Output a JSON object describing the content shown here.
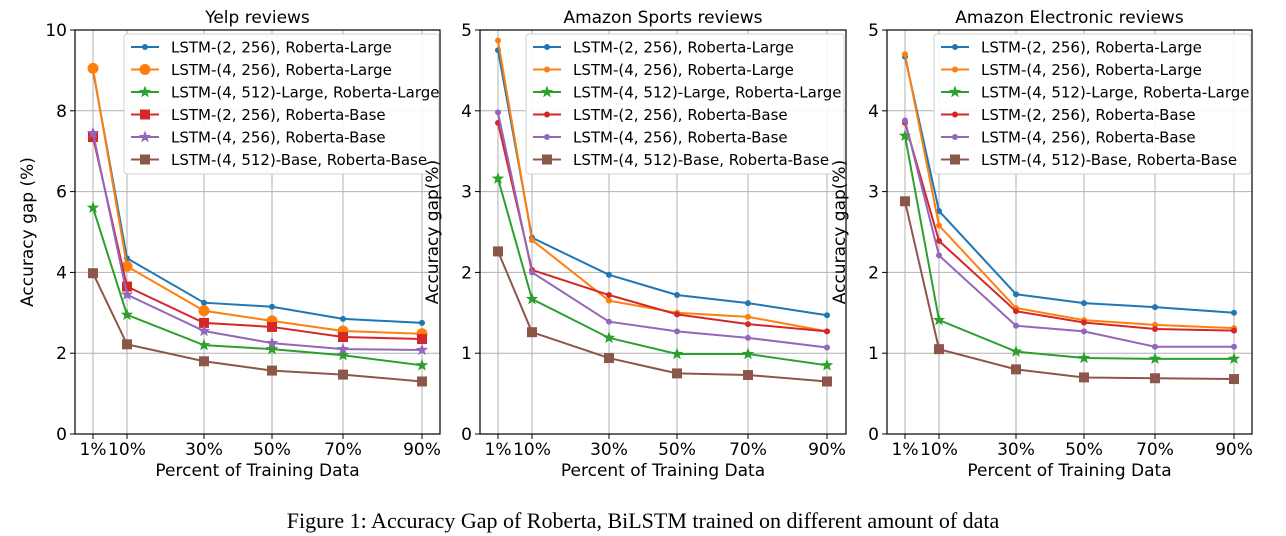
{
  "caption": "Figure 1: Accuracy Gap of Roberta, BiLSTM trained on different amount of data",
  "colors": {
    "blue": "#1f77b4",
    "orange": "#ff7f0e",
    "green": "#2ca02c",
    "red": "#d62728",
    "purple": "#9467bd",
    "brown": "#8c564b"
  },
  "chart_data": [
    {
      "type": "line",
      "title": "Yelp reviews",
      "xlabel": "Percent of Training Data",
      "ylabel": "Accuracy gap (%)",
      "x": [
        1,
        10,
        30,
        50,
        70,
        90
      ],
      "x_tick_labels": [
        "1%",
        "10%",
        "30%",
        "50%",
        "70%",
        "90%"
      ],
      "ylim": [
        0,
        10
      ],
      "yticks": [
        0,
        2,
        4,
        6,
        8,
        10
      ],
      "grid": true,
      "legend": "upper-right",
      "series": [
        {
          "name": "LSTM-(2, 256), Roberta-Large",
          "color": "blue",
          "marker": "dot",
          "values": [
            9.0,
            4.35,
            3.25,
            3.15,
            2.85,
            2.75
          ]
        },
        {
          "name": "LSTM-(4, 256), Roberta-Large",
          "color": "orange",
          "marker": "circle",
          "values": [
            9.05,
            4.15,
            3.05,
            2.8,
            2.55,
            2.48
          ]
        },
        {
          "name": "LSTM-(4, 512)-Large, Roberta-Large",
          "color": "green",
          "marker": "star",
          "values": [
            5.6,
            2.95,
            2.2,
            2.1,
            1.95,
            1.7
          ]
        },
        {
          "name": "LSTM-(2, 256), Roberta-Base",
          "color": "red",
          "marker": "square",
          "values": [
            7.35,
            3.65,
            2.75,
            2.65,
            2.4,
            2.35
          ]
        },
        {
          "name": "LSTM-(4, 256), Roberta-Base",
          "color": "purple",
          "marker": "star",
          "values": [
            7.45,
            3.45,
            2.55,
            2.25,
            2.1,
            2.08
          ]
        },
        {
          "name": "LSTM-(4, 512)-Base, Roberta-Base",
          "color": "brown",
          "marker": "square",
          "values": [
            3.98,
            2.22,
            1.8,
            1.57,
            1.47,
            1.3
          ]
        }
      ]
    },
    {
      "type": "line",
      "title": "Amazon Sports reviews",
      "xlabel": "Percent of Training Data",
      "ylabel": "Accuracy gap(%)",
      "x": [
        1,
        10,
        30,
        50,
        70,
        90
      ],
      "x_tick_labels": [
        "1%",
        "10%",
        "30%",
        "50%",
        "70%",
        "90%"
      ],
      "ylim": [
        0,
        5
      ],
      "yticks": [
        0,
        1,
        2,
        3,
        4,
        5
      ],
      "grid": true,
      "legend": "upper-right",
      "series": [
        {
          "name": "LSTM-(2, 256), Roberta-Large",
          "color": "blue",
          "marker": "dot",
          "values": [
            4.75,
            2.43,
            1.97,
            1.72,
            1.62,
            1.47
          ]
        },
        {
          "name": "LSTM-(4, 256), Roberta-Large",
          "color": "orange",
          "marker": "dot",
          "values": [
            4.87,
            2.4,
            1.65,
            1.5,
            1.45,
            1.27
          ]
        },
        {
          "name": "LSTM-(4, 512)-Large, Roberta-Large",
          "color": "green",
          "marker": "star",
          "values": [
            3.16,
            1.67,
            1.19,
            0.99,
            0.99,
            0.85
          ]
        },
        {
          "name": "LSTM-(2, 256), Roberta-Base",
          "color": "red",
          "marker": "dot",
          "values": [
            3.85,
            2.03,
            1.72,
            1.48,
            1.36,
            1.27
          ]
        },
        {
          "name": "LSTM-(4, 256), Roberta-Base",
          "color": "purple",
          "marker": "dot",
          "values": [
            3.98,
            2.0,
            1.39,
            1.27,
            1.19,
            1.07
          ]
        },
        {
          "name": "LSTM-(4, 512)-Base, Roberta-Base",
          "color": "brown",
          "marker": "square",
          "values": [
            2.26,
            1.26,
            0.94,
            0.75,
            0.73,
            0.65
          ]
        }
      ]
    },
    {
      "type": "line",
      "title": "Amazon Electronic reviews",
      "xlabel": "Percent of Training Data",
      "ylabel": "Accuracy gap(%)",
      "x": [
        1,
        10,
        30,
        50,
        70,
        90
      ],
      "x_tick_labels": [
        "1%",
        "10%",
        "30%",
        "50%",
        "70%",
        "90%"
      ],
      "ylim": [
        0,
        5
      ],
      "yticks": [
        0,
        1,
        2,
        3,
        4,
        5
      ],
      "grid": true,
      "legend": "upper-right",
      "series": [
        {
          "name": "LSTM-(2, 256), Roberta-Large",
          "color": "blue",
          "marker": "dot",
          "values": [
            4.67,
            2.76,
            1.73,
            1.62,
            1.57,
            1.5
          ]
        },
        {
          "name": "LSTM-(4, 256), Roberta-Large",
          "color": "orange",
          "marker": "dot",
          "values": [
            4.7,
            2.58,
            1.56,
            1.41,
            1.35,
            1.31
          ]
        },
        {
          "name": "LSTM-(4, 512)-Large, Roberta-Large",
          "color": "green",
          "marker": "star",
          "values": [
            3.69,
            1.41,
            1.02,
            0.94,
            0.93,
            0.93
          ]
        },
        {
          "name": "LSTM-(2, 256), Roberta-Base",
          "color": "red",
          "marker": "dot",
          "values": [
            3.85,
            2.39,
            1.52,
            1.38,
            1.3,
            1.28
          ]
        },
        {
          "name": "LSTM-(4, 256), Roberta-Base",
          "color": "purple",
          "marker": "dot",
          "values": [
            3.88,
            2.21,
            1.34,
            1.27,
            1.08,
            1.08
          ]
        },
        {
          "name": "LSTM-(4, 512)-Base, Roberta-Base",
          "color": "brown",
          "marker": "square",
          "values": [
            2.88,
            1.05,
            0.8,
            0.7,
            0.69,
            0.68
          ]
        }
      ]
    }
  ]
}
